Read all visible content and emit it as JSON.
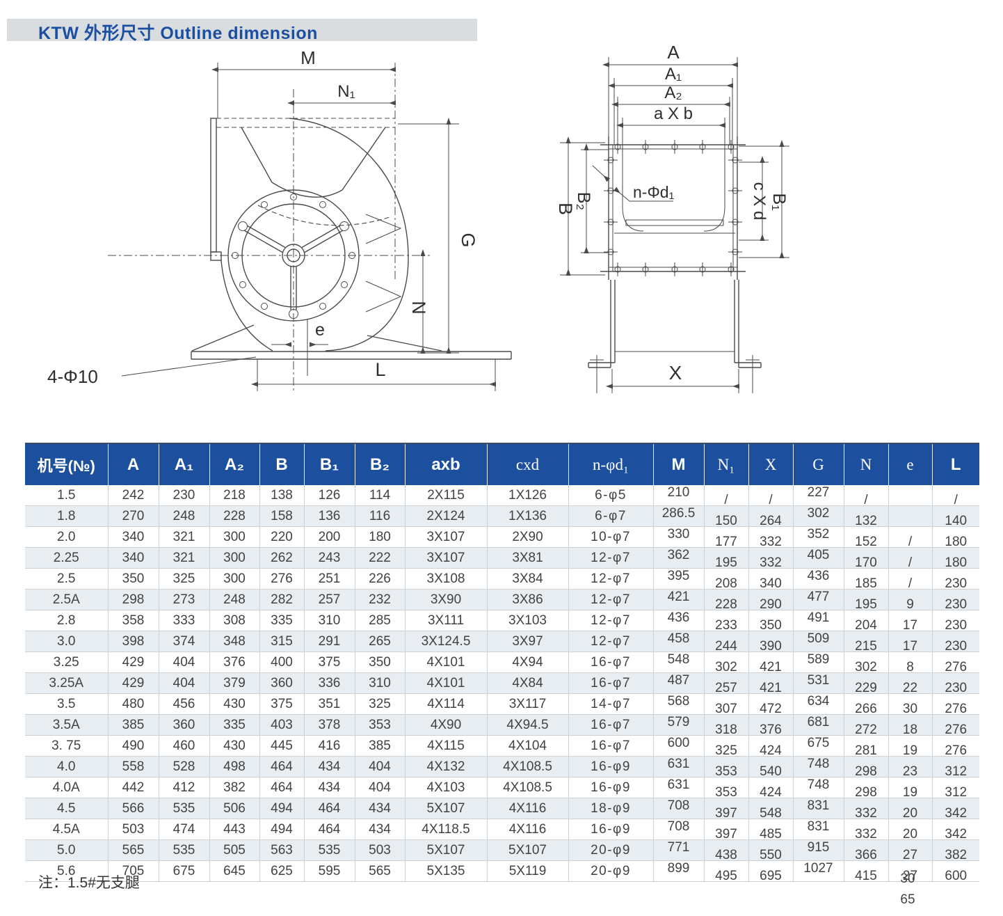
{
  "title": "KTW  外形尺寸  Outline dimension",
  "diagrams": {
    "front": {
      "labels": {
        "m": "M",
        "n1": "N₁",
        "g": "G",
        "n": "N",
        "e": "e",
        "l": "L",
        "holes": "4-Φ10"
      }
    },
    "side": {
      "labels": {
        "a": "A",
        "a1": "A₁",
        "a2": "A₂",
        "axb": "a X b",
        "nphid1": "n-Φd₁",
        "b": "B",
        "b2": "B₂",
        "cxd": "c X d",
        "b1": "B₁",
        "x": "X"
      }
    }
  },
  "table": {
    "columns": [
      "机号(№)",
      "A",
      "A₁",
      "A₂",
      "B",
      "B₁",
      "B₂",
      "axb",
      "cxd",
      "n-φd₁",
      "M",
      "N₁",
      "X",
      "G",
      "N",
      "e",
      "L"
    ],
    "rows": [
      [
        "1.5",
        "242",
        "230",
        "218",
        "138",
        "126",
        "114",
        "2X115",
        "1X126",
        "6-φ5",
        "210",
        "/",
        "/",
        "227",
        "/",
        "",
        "/"
      ],
      [
        "1.8",
        "270",
        "248",
        "228",
        "158",
        "136",
        "116",
        "2X124",
        "1X136",
        "6-φ7",
        "286.5",
        "150",
        "264",
        "302",
        "132",
        "",
        "140"
      ],
      [
        "2.0",
        "340",
        "321",
        "300",
        "220",
        "200",
        "180",
        "3X107",
        "2X90",
        "10-φ7",
        "330",
        "177",
        "332",
        "352",
        "152",
        "/",
        "180"
      ],
      [
        "2.25",
        "340",
        "321",
        "300",
        "262",
        "243",
        "222",
        "3X107",
        "3X81",
        "12-φ7",
        "362",
        "195",
        "332",
        "405",
        "170",
        "/",
        "180"
      ],
      [
        "2.5",
        "350",
        "325",
        "300",
        "276",
        "251",
        "226",
        "3X108",
        "3X84",
        "12-φ7",
        "395",
        "208",
        "340",
        "436",
        "185",
        "/",
        "230"
      ],
      [
        "2.5A",
        "298",
        "273",
        "248",
        "282",
        "257",
        "232",
        "3X90",
        "3X86",
        "12-φ7",
        "421",
        "228",
        "290",
        "477",
        "195",
        "9",
        "230"
      ],
      [
        "2.8",
        "358",
        "333",
        "308",
        "335",
        "310",
        "285",
        "3X111",
        "3X103",
        "12-φ7",
        "436",
        "233",
        "350",
        "491",
        "204",
        "17",
        "230"
      ],
      [
        "3.0",
        "398",
        "374",
        "348",
        "315",
        "291",
        "265",
        "3X124.5",
        "3X97",
        "12-φ7",
        "458",
        "244",
        "390",
        "509",
        "215",
        "17",
        "230"
      ],
      [
        "3.25",
        "429",
        "404",
        "376",
        "400",
        "375",
        "350",
        "4X101",
        "4X94",
        "16-φ7",
        "548",
        "302",
        "421",
        "589",
        "302",
        "8",
        "276"
      ],
      [
        "3.25A",
        "429",
        "404",
        "379",
        "360",
        "336",
        "310",
        "4X101",
        "4X84",
        "16-φ7",
        "487",
        "257",
        "421",
        "531",
        "229",
        "22",
        "230"
      ],
      [
        "3.5",
        "480",
        "456",
        "430",
        "375",
        "351",
        "325",
        "4X114",
        "3X117",
        "14-φ7",
        "568",
        "307",
        "472",
        "634",
        "266",
        "30",
        "276"
      ],
      [
        "3.5A",
        "385",
        "360",
        "335",
        "403",
        "378",
        "353",
        "4X90",
        "4X94.5",
        "16-φ7",
        "579",
        "318",
        "376",
        "681",
        "272",
        "18",
        "276"
      ],
      [
        "3. 75",
        "490",
        "460",
        "430",
        "445",
        "416",
        "385",
        "4X115",
        "4X104",
        "16-φ7",
        "600",
        "325",
        "424",
        "675",
        "281",
        "19",
        "276"
      ],
      [
        "4.0",
        "558",
        "528",
        "498",
        "464",
        "434",
        "404",
        "4X132",
        "4X108.5",
        "16-φ9",
        "631",
        "353",
        "540",
        "748",
        "298",
        "23",
        "312"
      ],
      [
        "4.0A",
        "442",
        "412",
        "382",
        "464",
        "434",
        "404",
        "4X103",
        "4X108.5",
        "16-φ9",
        "631",
        "353",
        "424",
        "748",
        "298",
        "19",
        "312"
      ],
      [
        "4.5",
        "566",
        "535",
        "506",
        "494",
        "464",
        "434",
        "5X107",
        "4X116",
        "18-φ9",
        "708",
        "397",
        "548",
        "831",
        "332",
        "20",
        "342"
      ],
      [
        "4.5A",
        "503",
        "474",
        "443",
        "494",
        "464",
        "434",
        "4X118.5",
        "4X116",
        "16-φ9",
        "708",
        "397",
        "485",
        "831",
        "332",
        "20",
        "342"
      ],
      [
        "5.0",
        "565",
        "535",
        "505",
        "563",
        "535",
        "503",
        "5X107",
        "5X107",
        "20-φ9",
        "771",
        "438",
        "550",
        "915",
        "366",
        "27",
        "382"
      ],
      [
        "5.6",
        "705",
        "675",
        "645",
        "625",
        "595",
        "565",
        "5X135",
        "5X119",
        "20-φ9",
        "899",
        "495",
        "695",
        "1027",
        "415",
        "27",
        "600"
      ]
    ]
  },
  "note": "注：1.5#无支腿",
  "overflow_values": [
    "30",
    "65"
  ],
  "colors": {
    "header_bg": "#1c4f9e",
    "title_fg": "#1d4fa1",
    "title_bg": "#d9dde0",
    "row_alt": "#e8edf2"
  }
}
